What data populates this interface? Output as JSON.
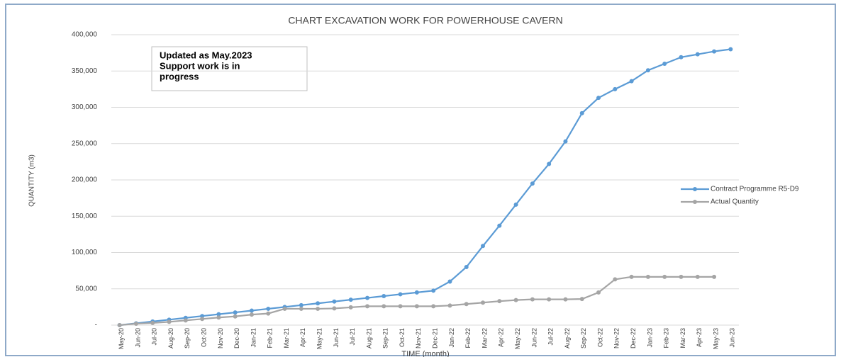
{
  "chart_data": {
    "type": "line",
    "title": "CHART EXCAVATION WORK FOR POWERHOUSE CAVERN",
    "annotation": [
      "Updated as May.2023",
      "Support work is in",
      "progress"
    ],
    "x_label": "TIME (month)",
    "y_label": "QUANTITY (m3)",
    "categories": [
      "May-20",
      "Jun-20",
      "Jul-20",
      "Aug-20",
      "Sep-20",
      "Oct-20",
      "Nov-20",
      "Dec-20",
      "Jan-21",
      "Feb-21",
      "Mar-21",
      "Apr-21",
      "May-21",
      "Jun-21",
      "Jul-21",
      "Aug-21",
      "Sep-21",
      "Oct-21",
      "Nov-21",
      "Dec-21",
      "Jan-22",
      "Feb-22",
      "Mar-22",
      "Apr-22",
      "May-22",
      "Jun-22",
      "Jul-22",
      "Aug-22",
      "Sep-22",
      "Oct-22",
      "Nov-22",
      "Dec-22",
      "Jan-23",
      "Feb-23",
      "Mar-23",
      "Apr-23",
      "May-23",
      "Jun-23"
    ],
    "series": [
      {
        "name": "Contract Programme R5-D9",
        "color": "#5b9bd5",
        "values": [
          0,
          2500,
          5000,
          7500,
          10000,
          12500,
          15000,
          17500,
          20000,
          22500,
          25000,
          27500,
          30000,
          32500,
          35000,
          37500,
          40000,
          42500,
          45000,
          47500,
          60000,
          80000,
          109000,
          137000,
          166000,
          195000,
          222000,
          253000,
          292000,
          313000,
          325000,
          336000,
          351000,
          360000,
          369000,
          373000,
          377000,
          380000
        ]
      },
      {
        "name": "Actual Quantity",
        "color": "#a5a5a5",
        "values": [
          0,
          2000,
          3000,
          4500,
          6500,
          8500,
          10500,
          12000,
          14500,
          16000,
          22500,
          22500,
          22500,
          23000,
          24500,
          26000,
          26000,
          26000,
          26000,
          26000,
          27000,
          29000,
          31000,
          33000,
          34500,
          35500,
          35500,
          35500,
          36000,
          45000,
          63000,
          66500,
          66500,
          66500,
          66500,
          66500,
          66500,
          null
        ]
      }
    ],
    "ylim": [
      0,
      400000
    ],
    "yticks": [
      {
        "value": 0,
        "label": "-"
      },
      {
        "value": 50000,
        "label": "50,000"
      },
      {
        "value": 100000,
        "label": "100,000"
      },
      {
        "value": 150000,
        "label": "150,000"
      },
      {
        "value": 200000,
        "label": "200,000"
      },
      {
        "value": 250000,
        "label": "250,000"
      },
      {
        "value": 300000,
        "label": "300,000"
      },
      {
        "value": 350000,
        "label": "350,000"
      },
      {
        "value": 400000,
        "label": "400,000"
      }
    ],
    "grid": true,
    "legend": "right"
  }
}
